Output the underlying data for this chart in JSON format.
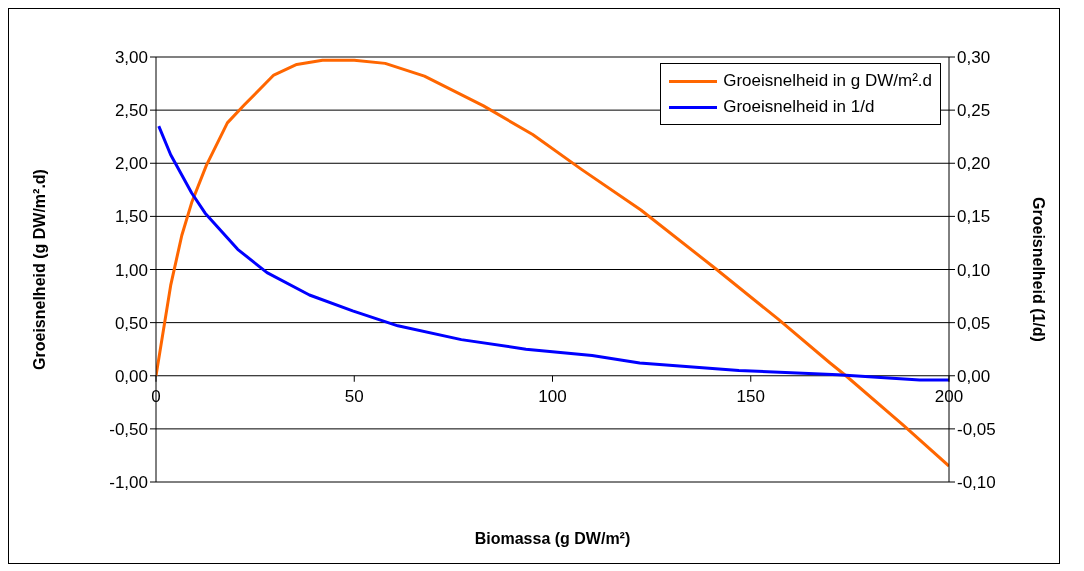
{
  "chart_data": {
    "type": "line",
    "xlabel": "Biomassa (g DW/m²)",
    "ylabel": "Groeisnelheid (g DW/m².d)",
    "y2label": "Groeisnelheid (1/d)",
    "xlim": [
      0,
      200
    ],
    "xticks": [
      0,
      50,
      100,
      150,
      200
    ],
    "ylim": [
      -1,
      3
    ],
    "yticks": [
      {
        "value": -1,
        "label": "-1,00"
      },
      {
        "value": -0.5,
        "label": "-0,50"
      },
      {
        "value": 0,
        "label": "0,00"
      },
      {
        "value": 0.5,
        "label": "0,50"
      },
      {
        "value": 1,
        "label": "1,00"
      },
      {
        "value": 1.5,
        "label": "1,50"
      },
      {
        "value": 2,
        "label": "2,00"
      },
      {
        "value": 2.5,
        "label": "2,50"
      },
      {
        "value": 3,
        "label": "3,00"
      }
    ],
    "y2lim": [
      -0.1,
      0.3
    ],
    "y2ticks": [
      {
        "value": -0.1,
        "label": "-0,10"
      },
      {
        "value": -0.05,
        "label": "-0,05"
      },
      {
        "value": 0,
        "label": "0,00"
      },
      {
        "value": 0.05,
        "label": "0,05"
      },
      {
        "value": 0.1,
        "label": "0,10"
      },
      {
        "value": 0.15,
        "label": "0,15"
      },
      {
        "value": 0.2,
        "label": "0,20"
      },
      {
        "value": 0.25,
        "label": "0,25"
      },
      {
        "value": 0.3,
        "label": "0,30"
      }
    ],
    "grid": "y",
    "legend": "top right",
    "marker": "none",
    "line_style": "solid",
    "series": [
      {
        "name": "Groeisnelheid in g DW/m².d",
        "color": "#ff6600",
        "x": [
          0,
          3.7,
          6.5,
          9,
          12.7,
          18,
          22.3,
          29.7,
          35.5,
          42,
          50,
          57.8,
          67.7,
          82.6,
          95,
          107.4,
          122.3,
          141.4,
          157,
          170,
          174,
          188.6,
          200
        ],
        "values": [
          0,
          0.85,
          1.32,
          1.63,
          1.98,
          2.38,
          2.55,
          2.83,
          2.93,
          2.97,
          2.97,
          2.94,
          2.82,
          2.54,
          2.27,
          1.94,
          1.56,
          1,
          0.53,
          0.12,
          0,
          -0.47,
          -0.85
        ]
      },
      {
        "name": "Groeisnelheid in 1/d",
        "color": "#0000ff",
        "axis": "y2",
        "x": [
          0.7,
          3.7,
          9,
          12.4,
          20.6,
          28,
          38.7,
          49.6,
          61,
          77,
          93.3,
          110,
          122,
          147,
          172,
          192.6,
          200
        ],
        "values": [
          0.235,
          0.208,
          0.172,
          0.153,
          0.119,
          0.097,
          0.076,
          0.061,
          0.047,
          0.034,
          0.025,
          0.019,
          0.012,
          0.005,
          0.001,
          -0.004,
          -0.004
        ]
      }
    ]
  }
}
